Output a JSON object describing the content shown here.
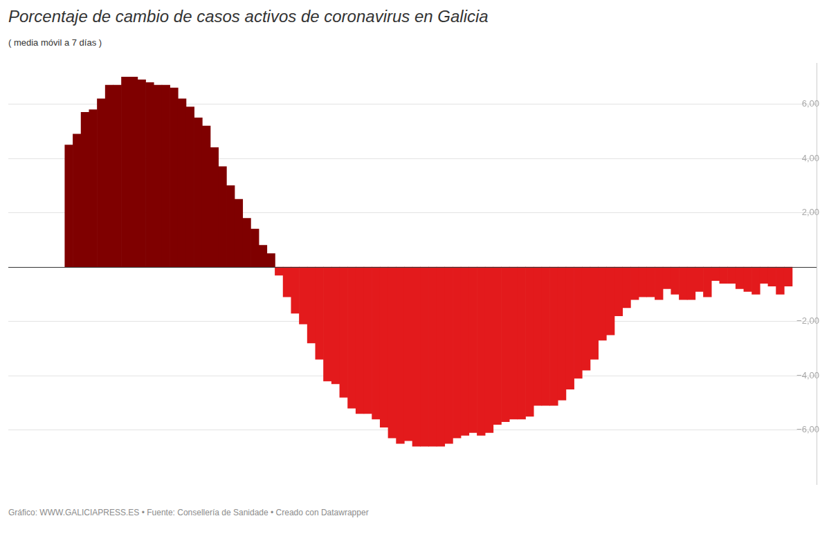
{
  "chart_data": {
    "type": "bar",
    "title": "Porcentaje de cambio de casos activos de coronavirus en Galicia",
    "subtitle": "( media móvil a 7 días )",
    "caption": "Gráfico: WWW.GALICIAPRESS.ES • Fuente: Consellería de Sanidade • Creado con Datawrapper",
    "categories": [
      null,
      null,
      null,
      null,
      null,
      null,
      null,
      null,
      null,
      null,
      null,
      null,
      null,
      null,
      null,
      null,
      null,
      null,
      null,
      null,
      null,
      null,
      null,
      null,
      null,
      null,
      null,
      null,
      null,
      null,
      null,
      null,
      null,
      null,
      null,
      null,
      null,
      null,
      null,
      null,
      null,
      null,
      null,
      null,
      null,
      null,
      null,
      null,
      null,
      null,
      null,
      null,
      null,
      null,
      null,
      null,
      null,
      null,
      null,
      null,
      null,
      null,
      null,
      null,
      null,
      null,
      null,
      null,
      null,
      null,
      null,
      null,
      null,
      null,
      null,
      null,
      null,
      null,
      null,
      null,
      null,
      null,
      null,
      null,
      null,
      null,
      null,
      null,
      null,
      null,
      null,
      null,
      null,
      null,
      null,
      null,
      null,
      null,
      null,
      null
    ],
    "values": [
      null,
      null,
      null,
      null,
      null,
      null,
      null,
      4.5,
      4.9,
      5.7,
      5.8,
      6.2,
      6.7,
      6.7,
      7.0,
      7.0,
      6.9,
      6.8,
      6.7,
      6.7,
      6.6,
      6.2,
      5.9,
      5.5,
      5.2,
      4.4,
      3.7,
      3.0,
      2.5,
      1.8,
      1.4,
      0.8,
      0.5,
      -0.3,
      -1.1,
      -1.7,
      -2.1,
      -2.8,
      -3.4,
      -4.2,
      -4.3,
      -4.8,
      -5.2,
      -5.4,
      -5.4,
      -5.6,
      -5.9,
      -6.3,
      -6.5,
      -6.4,
      -6.6,
      -6.6,
      -6.6,
      -6.6,
      -6.5,
      -6.3,
      -6.2,
      -6.1,
      -6.2,
      -6.1,
      -5.8,
      -5.7,
      -5.6,
      -5.6,
      -5.5,
      -5.1,
      -5.1,
      -5.1,
      -4.9,
      -4.5,
      -4.1,
      -3.8,
      -3.4,
      -2.7,
      -2.5,
      -1.8,
      -1.5,
      -1.2,
      -1.1,
      -1.1,
      -1.2,
      -0.8,
      -1.0,
      -1.2,
      -1.2,
      -0.9,
      -1.1,
      -0.5,
      -0.6,
      -0.6,
      -0.8,
      -0.9,
      -1.0,
      -0.6,
      -0.7,
      -1.0,
      -0.7,
      null,
      null,
      null
    ],
    "colors": [
      "#7f0000",
      "#7f0000",
      "#7f0000",
      "#7f0000",
      "#7f0000",
      "#7f0000",
      "#7f0000",
      "#7f0000",
      "#7f0000",
      "#7f0000",
      "#7f0000",
      "#7f0000",
      "#7f0000",
      "#7f0000",
      "#7f0000",
      "#7f0000",
      "#7f0000",
      "#7f0000",
      "#7f0000",
      "#7f0000",
      "#7f0000",
      "#7f0000",
      "#7f0000",
      "#7f0000",
      "#7f0000",
      "#7f0000",
      "#7f0000",
      "#7f0000",
      "#7f0000",
      "#7f0000",
      "#7f0000",
      "#7f0000",
      "#7f0000",
      "#e31a1c",
      "#e31a1c",
      "#e31a1c",
      "#e31a1c",
      "#e31a1c",
      "#e31a1c",
      "#e31a1c",
      "#e31a1c",
      "#e31a1c",
      "#e31a1c",
      "#e31a1c",
      "#e31a1c",
      "#e31a1c",
      "#e31a1c",
      "#e31a1c",
      "#e31a1c",
      "#e31a1c",
      "#e31a1c",
      "#e31a1c",
      "#e31a1c",
      "#e31a1c",
      "#e31a1c",
      "#e31a1c",
      "#e31a1c",
      "#e31a1c",
      "#e31a1c",
      "#e31a1c",
      "#e31a1c",
      "#e31a1c",
      "#e31a1c",
      "#e31a1c",
      "#e31a1c",
      "#e31a1c",
      "#e31a1c",
      "#e31a1c",
      "#e31a1c",
      "#e31a1c",
      "#e31a1c",
      "#e31a1c",
      "#e31a1c",
      "#e31a1c",
      "#e31a1c",
      "#e31a1c",
      "#e31a1c",
      "#e31a1c",
      "#e31a1c",
      "#e31a1c",
      "#e31a1c",
      "#e31a1c",
      "#e31a1c",
      "#e31a1c",
      "#e31a1c",
      "#e31a1c",
      "#e31a1c",
      "#e31a1c",
      "#e31a1c",
      "#e31a1c",
      "#e31a1c",
      "#e31a1c",
      "#e31a1c",
      "#e31a1c",
      "#e31a1c",
      "#e31a1c",
      "#e31a1c",
      "#e31a1c",
      "#e31a1c",
      "#e31a1c"
    ],
    "ylim": [
      -8,
      7.5
    ],
    "yticks": [
      {
        "value": -6,
        "label": "−6,00"
      },
      {
        "value": -4,
        "label": "−4,00"
      },
      {
        "value": -2,
        "label": "−2,00"
      },
      {
        "value": 2,
        "label": "2,00"
      },
      {
        "value": 4,
        "label": "4,00"
      },
      {
        "value": 6,
        "label": "6,00"
      }
    ],
    "grid": true,
    "tick_labels": "y"
  }
}
